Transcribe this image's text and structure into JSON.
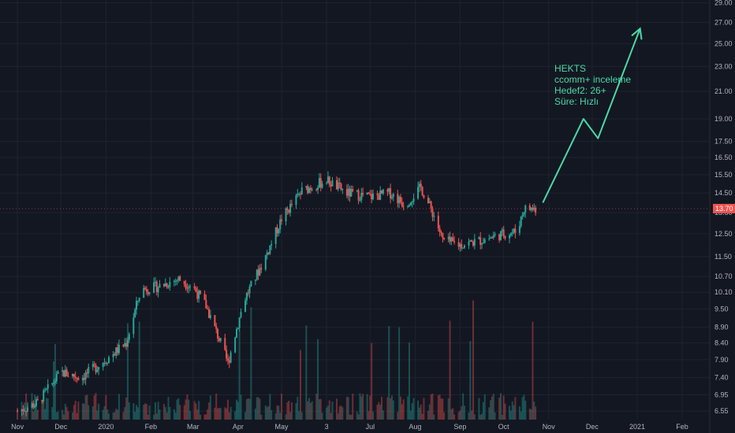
{
  "chart_data": {
    "type": "candlestick",
    "symbol": "HEKTS",
    "last_price": "13.70",
    "scale": "log",
    "y_ticks": [
      "29.00",
      "27.00",
      "25.00",
      "23.00",
      "21.00",
      "19.00",
      "17.50",
      "16.50",
      "15.50",
      "14.50",
      "13.50",
      "12.50",
      "11.50",
      "10.70",
      "10.10",
      "9.50",
      "8.90",
      "8.40",
      "7.90",
      "7.40",
      "6.95",
      "6.55"
    ],
    "x_ticks": [
      "Nov",
      "Dec",
      "2020",
      "Feb",
      "Mar",
      "Apr",
      "May",
      "3",
      "Jul",
      "Aug",
      "Sep",
      "Oct",
      "Nov",
      "Dec",
      "2021",
      "Feb"
    ],
    "series": [
      {
        "date": "2019-11-01",
        "close": 6.55
      },
      {
        "date": "2019-11-15",
        "close": 6.75
      },
      {
        "date": "2019-12-01",
        "close": 7.55
      },
      {
        "date": "2019-12-15",
        "close": 7.4
      },
      {
        "date": "2020-01-01",
        "close": 7.9
      },
      {
        "date": "2020-01-15",
        "close": 8.4
      },
      {
        "date": "2020-01-25",
        "close": 10.2
      },
      {
        "date": "2020-02-05",
        "close": 10.3
      },
      {
        "date": "2020-02-20",
        "close": 10.6
      },
      {
        "date": "2020-03-01",
        "close": 10.3
      },
      {
        "date": "2020-03-10",
        "close": 9.6
      },
      {
        "date": "2020-03-20",
        "close": 8.4
      },
      {
        "date": "2020-03-25",
        "close": 7.8
      },
      {
        "date": "2020-04-05",
        "close": 9.8
      },
      {
        "date": "2020-04-20",
        "close": 11.5
      },
      {
        "date": "2020-05-01",
        "close": 13.2
      },
      {
        "date": "2020-05-15",
        "close": 14.6
      },
      {
        "date": "2020-06-01",
        "close": 15.2
      },
      {
        "date": "2020-06-15",
        "close": 14.5
      },
      {
        "date": "2020-07-01",
        "close": 14.3
      },
      {
        "date": "2020-07-15",
        "close": 14.5
      },
      {
        "date": "2020-07-25",
        "close": 13.9
      },
      {
        "date": "2020-08-05",
        "close": 14.8
      },
      {
        "date": "2020-08-15",
        "close": 13.2
      },
      {
        "date": "2020-08-20",
        "close": 12.2
      },
      {
        "date": "2020-09-01",
        "close": 12.0
      },
      {
        "date": "2020-09-15",
        "close": 12.2
      },
      {
        "date": "2020-10-01",
        "close": 12.5
      },
      {
        "date": "2020-10-10",
        "close": 12.6
      },
      {
        "date": "2020-10-15",
        "close": 13.7
      },
      {
        "date": "2020-10-23",
        "close": 13.7
      }
    ],
    "annotation": {
      "lines": [
        "HEKTS",
        "ccomm+ inceleme",
        "Hedef2: 26+",
        "Süre: Hızlı"
      ],
      "color": "#4cd9a6",
      "arrow_path": [
        {
          "date": "2020-10-28",
          "value": 14.0
        },
        {
          "date": "2020-11-25",
          "value": 19.0
        },
        {
          "date": "2020-12-05",
          "value": 17.7
        },
        {
          "date": "2021-01-03",
          "value": 26.4
        }
      ]
    },
    "colors": {
      "up": "#26a69a",
      "down": "#ef5350",
      "background": "#131722",
      "grid": "#1f2330",
      "price_label": "#ef5350"
    }
  }
}
